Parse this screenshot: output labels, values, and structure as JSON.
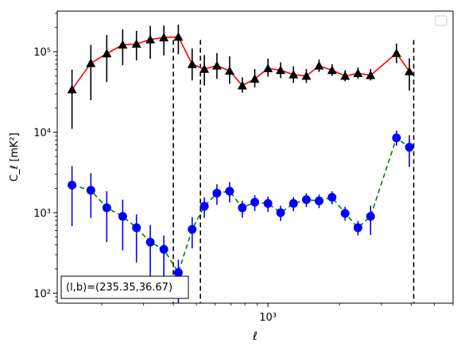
{
  "chart_data": {
    "type": "scatter",
    "title": "",
    "xlabel": "ℓ",
    "ylabel": "C_ℓ [mK²]",
    "xscale": "log",
    "yscale": "log",
    "xlim": [
      130,
      6000
    ],
    "ylim": [
      75,
      320000
    ],
    "x_tick_labels": [
      "10³"
    ],
    "y_tick_labels": [
      "10²",
      "10³",
      "10⁴",
      "10⁵"
    ],
    "grid": false,
    "legend": "top-right (empty)",
    "annotation": "(l,b)=(235.35,36.67)",
    "vlines": [
      400,
      520,
      4100
    ],
    "x": [
      150,
      180,
      210,
      245,
      280,
      320,
      365,
      420,
      480,
      540,
      610,
      690,
      780,
      880,
      1000,
      1130,
      1280,
      1450,
      1640,
      1860,
      2110,
      2390,
      2700,
      3060,
      3470,
      3930,
      4450,
      5000
    ],
    "series": [
      {
        "name": "",
        "color": "#ff0000",
        "marker": "triangle",
        "marker_color": "#000000",
        "error_color": "#000000",
        "linestyle": "solid",
        "values": [
          34000,
          72000,
          95000,
          122000,
          125000,
          142000,
          150000,
          153000,
          70000,
          61000,
          67000,
          58000,
          38000,
          46000,
          62000,
          59000,
          52000,
          50000,
          67000,
          59000,
          50000,
          54000,
          51000,
          96000,
          57000
        ],
        "x_index_start": 0,
        "x_index_map": [
          0,
          1,
          2,
          3,
          4,
          5,
          6,
          7,
          8,
          9,
          10,
          11,
          12,
          13,
          14,
          15,
          16,
          17,
          18,
          19,
          20,
          21,
          22,
          24,
          25
        ],
        "err_low": [
          11000,
          25000,
          42000,
          68000,
          78000,
          82000,
          90000,
          93000,
          44000,
          38000,
          46000,
          40000,
          31000,
          36000,
          49000,
          47000,
          41000,
          41000,
          56000,
          50000,
          43000,
          46000,
          44000,
          72000,
          33000
        ],
        "err_high": [
          60000,
          122000,
          162000,
          190000,
          182000,
          210000,
          212000,
          218000,
          110000,
          91000,
          96000,
          88000,
          48000,
          61000,
          82000,
          74000,
          66000,
          61000,
          80000,
          70000,
          59000,
          64000,
          61000,
          126000,
          83000
        ]
      },
      {
        "name": "",
        "color": "#008000",
        "marker": "circle",
        "marker_color": "#0000ff",
        "error_color": "#0000ff",
        "linestyle": "dashed",
        "values": [
          2200,
          1900,
          1150,
          900,
          650,
          430,
          350,
          180,
          620,
          1200,
          1750,
          1850,
          1150,
          1350,
          1300,
          1000,
          1300,
          1450,
          1400,
          1550,
          980,
          650,
          900,
          8500,
          6500
        ],
        "x_index_map": [
          0,
          1,
          2,
          3,
          4,
          5,
          6,
          7,
          8,
          9,
          10,
          11,
          12,
          13,
          14,
          15,
          16,
          17,
          18,
          19,
          20,
          21,
          22,
          24,
          25
        ],
        "err_low": [
          680,
          860,
          430,
          340,
          240,
          160,
          130,
          75,
          360,
          860,
          1250,
          1340,
          870,
          1050,
          1020,
          790,
          1040,
          1170,
          1140,
          1270,
          800,
          520,
          530,
          6800,
          3700
        ],
        "err_high": [
          3800,
          3100,
          1850,
          1450,
          950,
          700,
          520,
          260,
          880,
          1550,
          2250,
          2400,
          1400,
          1650,
          1580,
          1220,
          1560,
          1740,
          1680,
          1840,
          1180,
          790,
          1220,
          10500,
          9200
        ]
      }
    ]
  }
}
